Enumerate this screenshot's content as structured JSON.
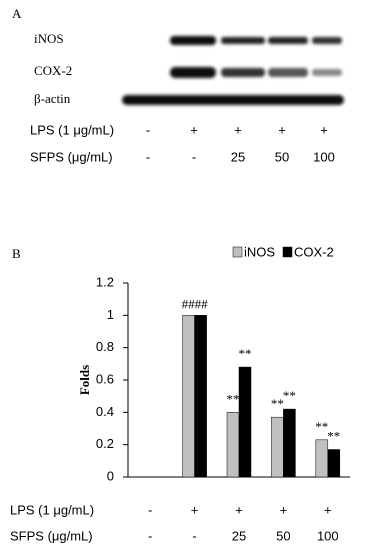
{
  "panel_a": {
    "label": "A",
    "blot_rows": [
      "iNOS",
      "COX-2",
      "β-actin"
    ],
    "treatments": [
      {
        "label": "LPS (1 μg/mL)",
        "values": [
          "-",
          "+",
          "+",
          "+",
          "+"
        ]
      },
      {
        "label": "SFPS (μg/mL)",
        "values": [
          "-",
          "-",
          "25",
          "50",
          "100"
        ]
      }
    ]
  },
  "chart_data": {
    "type": "bar",
    "panel_label": "B",
    "y_label": "Folds",
    "categories": [
      null,
      null,
      null,
      null,
      null
    ],
    "series": [
      {
        "name": "iNOS",
        "color": "#c0c0c0",
        "values": [
          null,
          1.0,
          0.4,
          0.37,
          0.23
        ]
      },
      {
        "name": "COX-2",
        "color": "#000000",
        "values": [
          null,
          1.0,
          0.68,
          0.42,
          0.17
        ]
      }
    ],
    "ylim": [
      0,
      1.2
    ],
    "yticks": [
      0,
      0.2,
      0.4,
      0.6,
      0.8,
      1,
      1.2
    ],
    "legend": "top-right",
    "annotations": [
      {
        "text": "####",
        "category": 1
      },
      {
        "text": "**",
        "category": 2,
        "series": 0
      },
      {
        "text": "**",
        "category": 2,
        "series": 1
      },
      {
        "text": "**",
        "category": 3,
        "series": 0
      },
      {
        "text": "**",
        "category": 3,
        "series": 1
      },
      {
        "text": "**",
        "category": 4,
        "series": 0
      },
      {
        "text": "**",
        "category": 4,
        "series": 1
      }
    ],
    "treatments": [
      {
        "label": "LPS (1 μg/mL)",
        "values": [
          "-",
          "+",
          "+",
          "+",
          "+"
        ]
      },
      {
        "label": "SFPS (μg/mL)",
        "values": [
          "-",
          "-",
          "25",
          "50",
          "100"
        ]
      }
    ]
  }
}
